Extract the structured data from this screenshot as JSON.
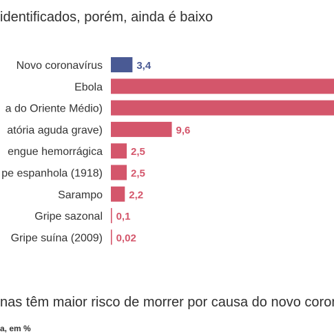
{
  "header": {
    "title": "identificados, porém, ainda é baixo"
  },
  "chart_data": {
    "type": "bar",
    "orientation": "horizontal",
    "categories": [
      "Novo coronavírus",
      "Ebola",
      "a do Oriente Médio)",
      "atória aguda grave)",
      "engue hemorrágica",
      "pe espanhola (1918)",
      "Sarampo",
      "Gripe sazonal",
      "Gripe suína (2009)"
    ],
    "values": [
      3.4,
      40,
      40,
      9.6,
      2.5,
      2.5,
      2.2,
      0.1,
      0.02
    ],
    "value_labels": [
      "3,4",
      "",
      "",
      "9,6",
      "2,5",
      "2,5",
      "2,2",
      "0,1",
      "0,02"
    ],
    "highlight_index": 0,
    "colors": {
      "highlight": "#4a5a94",
      "default": "#d4566b"
    },
    "title": "identificados, porém, ainda é baixo"
  },
  "footer": {
    "subtitle": "nas têm maior risco de morrer por causa do novo coron",
    "note": "a, em %"
  }
}
